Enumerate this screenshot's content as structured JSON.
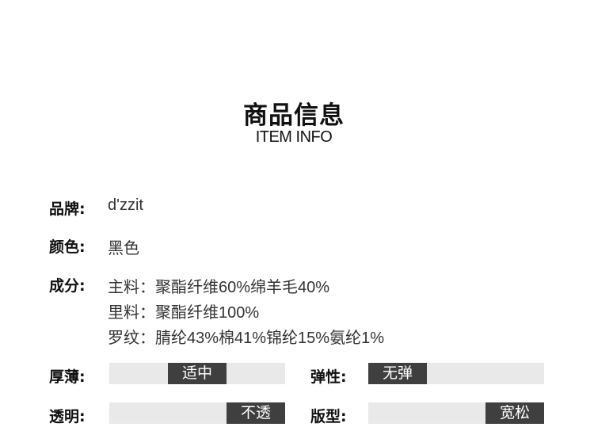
{
  "header": {
    "title": "商品信息",
    "subtitle": "ITEM INFO"
  },
  "info": [
    {
      "label": "品牌:",
      "values": [
        "d'zzit"
      ]
    },
    {
      "label": "颜色:",
      "values": [
        "黑色"
      ]
    },
    {
      "label": "成分:",
      "values": [
        "主料：聚酯纤维60%绵羊毛40%",
        "里料：聚酯纤维100%",
        "罗纹：腈纶43%棉41%锦纶15%氨纶1%"
      ]
    }
  ],
  "scales": [
    {
      "label": "厚薄:",
      "value": "适中",
      "position": 2,
      "of": 3
    },
    {
      "label": "弹性:",
      "value": "无弹",
      "position": 1,
      "of": 3
    },
    {
      "label": "透明:",
      "value": "不透",
      "position": 3,
      "of": 3
    },
    {
      "label": "版型:",
      "value": "宽松",
      "position": 3,
      "of": 3
    }
  ],
  "colors": {
    "bar": "#e9e9e9",
    "indicator": "#3f3f3f"
  }
}
